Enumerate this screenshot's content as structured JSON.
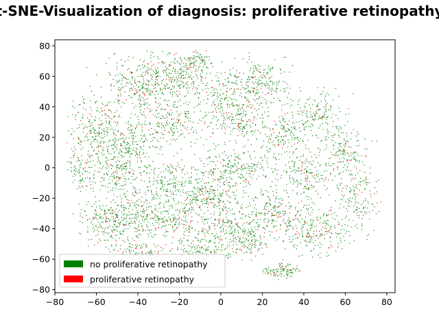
{
  "chart_data": {
    "type": "scatter",
    "title": "t-SNE-Visualization of diagnosis: proliferative retinopathy",
    "xlabel": "",
    "ylabel": "",
    "xlim": [
      -80,
      84
    ],
    "ylim": [
      -82,
      84
    ],
    "xticks": [
      -80,
      -60,
      -40,
      -20,
      0,
      20,
      40,
      60,
      80
    ],
    "yticks": [
      -80,
      -60,
      -40,
      -20,
      0,
      20,
      40,
      60,
      80
    ],
    "grid": false,
    "legend_position": "lower-left",
    "series": [
      {
        "name": "no proliferative retinopathy",
        "color": "#008000",
        "marker": "dot"
      },
      {
        "name": "proliferative retinopathy",
        "color": "#ff0000",
        "marker": "dot"
      }
    ],
    "clusters": [
      {
        "x": -60,
        "y": 25,
        "rx": 12,
        "ry": 22,
        "n": 260
      },
      {
        "x": -68,
        "y": -2,
        "rx": 6,
        "ry": 12,
        "n": 90
      },
      {
        "x": -40,
        "y": 55,
        "rx": 14,
        "ry": 16,
        "n": 300
      },
      {
        "x": -45,
        "y": 15,
        "rx": 12,
        "ry": 12,
        "n": 200
      },
      {
        "x": -20,
        "y": 60,
        "rx": 12,
        "ry": 12,
        "n": 220
      },
      {
        "x": -12,
        "y": 70,
        "rx": 8,
        "ry": 6,
        "n": 80
      },
      {
        "x": -25,
        "y": 30,
        "rx": 14,
        "ry": 14,
        "n": 240
      },
      {
        "x": 0,
        "y": 45,
        "rx": 10,
        "ry": 16,
        "n": 180
      },
      {
        "x": 20,
        "y": 55,
        "rx": 12,
        "ry": 15,
        "n": 230
      },
      {
        "x": 10,
        "y": 30,
        "rx": 10,
        "ry": 12,
        "n": 160
      },
      {
        "x": 45,
        "y": 35,
        "rx": 12,
        "ry": 14,
        "n": 180
      },
      {
        "x": 30,
        "y": 20,
        "rx": 10,
        "ry": 10,
        "n": 140
      },
      {
        "x": 58,
        "y": 10,
        "rx": 10,
        "ry": 14,
        "n": 170
      },
      {
        "x": 66,
        "y": -20,
        "rx": 8,
        "ry": 18,
        "n": 160
      },
      {
        "x": 40,
        "y": -5,
        "rx": 10,
        "ry": 14,
        "n": 180
      },
      {
        "x": 45,
        "y": -40,
        "rx": 14,
        "ry": 14,
        "n": 260
      },
      {
        "x": 25,
        "y": -30,
        "rx": 12,
        "ry": 12,
        "n": 180
      },
      {
        "x": 15,
        "y": -50,
        "rx": 6,
        "ry": 8,
        "n": 70
      },
      {
        "x": 30,
        "y": -68,
        "rx": 8,
        "ry": 4,
        "n": 100
      },
      {
        "x": 5,
        "y": 0,
        "rx": 16,
        "ry": 10,
        "n": 260
      },
      {
        "x": -5,
        "y": -20,
        "rx": 14,
        "ry": 12,
        "n": 240
      },
      {
        "x": 5,
        "y": -40,
        "rx": 14,
        "ry": 12,
        "n": 230
      },
      {
        "x": -10,
        "y": -55,
        "rx": 12,
        "ry": 8,
        "n": 150
      },
      {
        "x": -25,
        "y": -10,
        "rx": 12,
        "ry": 12,
        "n": 190
      },
      {
        "x": -40,
        "y": -30,
        "rx": 14,
        "ry": 14,
        "n": 260
      },
      {
        "x": -55,
        "y": -35,
        "rx": 10,
        "ry": 14,
        "n": 190
      },
      {
        "x": -40,
        "y": -55,
        "rx": 10,
        "ry": 6,
        "n": 110
      },
      {
        "x": -20,
        "y": -35,
        "rx": 12,
        "ry": 10,
        "n": 170
      },
      {
        "x": -50,
        "y": -5,
        "rx": 10,
        "ry": 10,
        "n": 150
      }
    ],
    "positive_fraction": 0.12
  }
}
